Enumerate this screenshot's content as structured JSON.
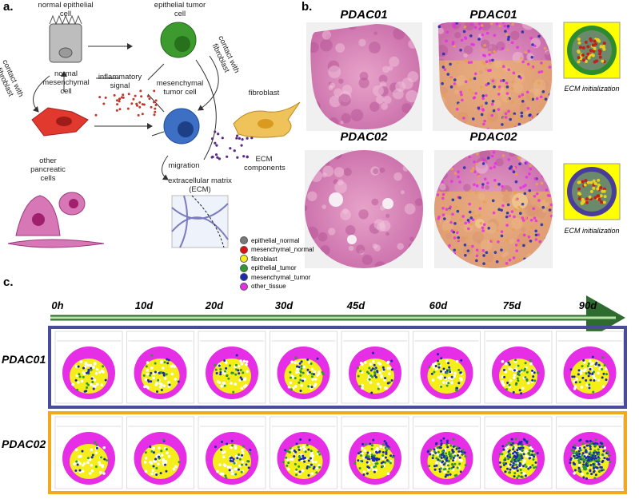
{
  "panel_a": {
    "label": "a.",
    "cells": {
      "normal_epithelial": "normal epithelial cell",
      "epithelial_tumor": "epithelial tumor cell",
      "normal_mesenchymal": "normal mesenchymal cell",
      "mesenchymal_tumor": "mesenchymal tumor cell",
      "inflammatory": "inflammatory signal",
      "fibroblast": "fibroblast",
      "migration": "migration",
      "ecm_components": "ECM components",
      "other": "other pancreatic cells",
      "ecm": "extracellular matrix (ECM)",
      "contact_left": "contact with fibroblast",
      "contact_right": "contact with fibroblast"
    },
    "legend": [
      {
        "name": "epithelial_normal",
        "color": "#7a7a7a"
      },
      {
        "name": "mesenchymal_normal",
        "color": "#e01010"
      },
      {
        "name": "fibroblast",
        "color": "#f5ee1a"
      },
      {
        "name": "epithelial_tumor",
        "color": "#2e9a2e"
      },
      {
        "name": "mesenchymal_tumor",
        "color": "#1a2bb0"
      },
      {
        "name": "other_tissue",
        "color": "#e62ee6"
      }
    ]
  },
  "panel_b": {
    "label": "b.",
    "titles": [
      "PDAC01",
      "PDAC01",
      "PDAC02",
      "PDAC02"
    ],
    "ecm_labels": [
      "ECM initialization",
      "ECM initialization"
    ]
  },
  "panel_c": {
    "label": "c.",
    "timepoints": [
      "0h",
      "10d",
      "20d",
      "30d",
      "45d",
      "60d",
      "75d",
      "90d"
    ],
    "rows": [
      "PDAC01",
      "PDAC02"
    ]
  }
}
